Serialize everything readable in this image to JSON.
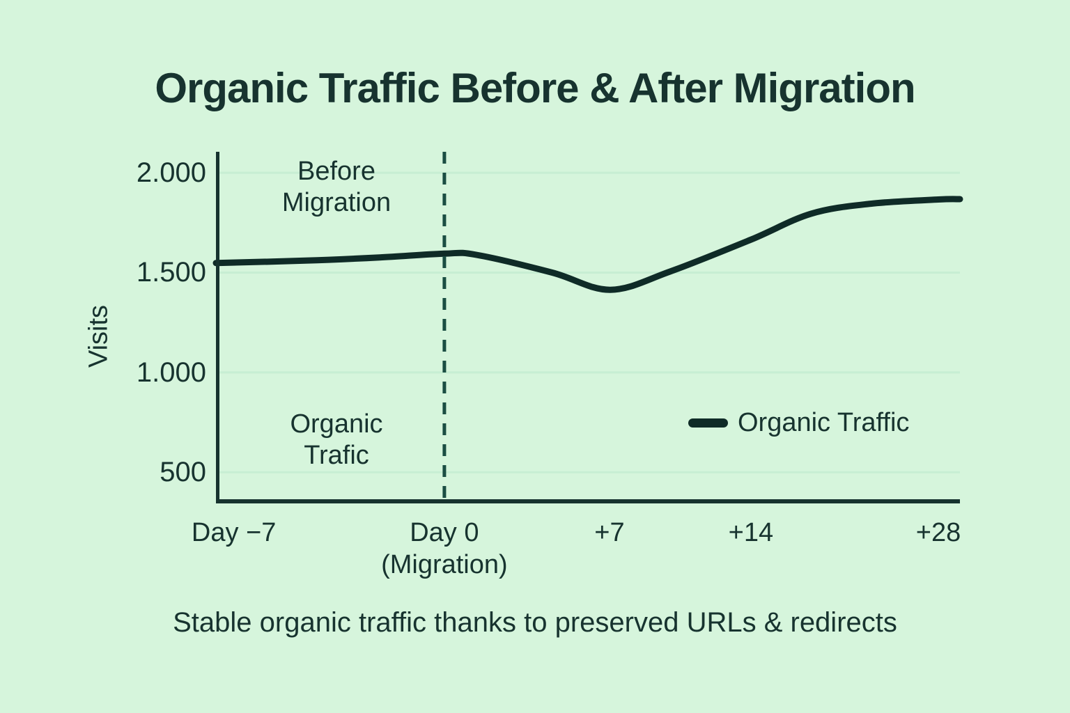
{
  "title": "Organic Traffic Before & After Migration",
  "caption": "Stable organic traffic thanks to preserved URLs & redirects",
  "colors": {
    "background": "#d6f5dc",
    "ink": "#17332f",
    "line": "#0f2b27",
    "grid": "#c7eed3",
    "dashed": "#1b4e43"
  },
  "legend": {
    "label": "Organic Traffic"
  },
  "annotations": {
    "before_migration": "Before\nMigration",
    "series_label": "Organic\nTrafic"
  },
  "y_axis": {
    "label": "Visits",
    "ticks": [
      {
        "value": 2000,
        "label": "2.000"
      },
      {
        "value": 1500,
        "label": "1.500"
      },
      {
        "value": 1000,
        "label": "1.000"
      },
      {
        "value": 500,
        "label": "500"
      }
    ]
  },
  "x_axis": {
    "ticks": [
      {
        "label": "Day −7",
        "pos": 0.024
      },
      {
        "label": "Day 0\n(Migration)",
        "pos": 0.307
      },
      {
        "label": "+7",
        "pos": 0.529
      },
      {
        "label": "+14",
        "pos": 0.719
      },
      {
        "label": "+28",
        "pos": 0.971
      }
    ]
  },
  "chart_data": {
    "type": "line",
    "title": "Organic Traffic Before & After Migration",
    "xlabel": "",
    "ylabel": "Visits",
    "ylim": [
      344,
      2105
    ],
    "grid": true,
    "legend_position": "center-right",
    "migration_marker_pos": 0.307,
    "series": [
      {
        "name": "Organic Traffic",
        "points": [
          {
            "day": -7,
            "visits": 1550
          },
          {
            "day": 0,
            "visits": 1600
          },
          {
            "day": 7,
            "visits": 1415
          },
          {
            "day": 14,
            "visits": 1665
          },
          {
            "day": 28,
            "visits": 1870
          }
        ]
      }
    ],
    "curve_points": [
      [
        0,
        1548
      ],
      [
        0.12,
        1560
      ],
      [
        0.22,
        1576
      ],
      [
        0.307,
        1595
      ],
      [
        0.35,
        1589
      ],
      [
        0.452,
        1500
      ],
      [
        0.53,
        1414
      ],
      [
        0.61,
        1505
      ],
      [
        0.719,
        1665
      ],
      [
        0.8,
        1795
      ],
      [
        0.88,
        1845
      ],
      [
        0.971,
        1866
      ],
      [
        1,
        1868
      ]
    ]
  }
}
